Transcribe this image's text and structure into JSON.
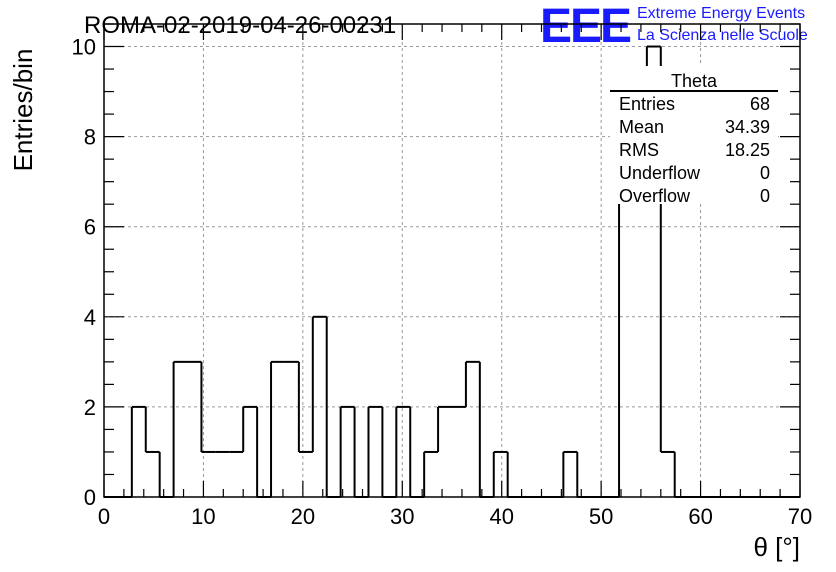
{
  "chart_data": {
    "type": "bar",
    "title": "ROMA-02-2019-04-26-00231",
    "xlabel": "θ [°]",
    "ylabel": "Entries/bin",
    "xlim": [
      0,
      70
    ],
    "ylim": [
      0,
      10.5
    ],
    "x_ticks": [
      0,
      10,
      20,
      30,
      40,
      50,
      60,
      70
    ],
    "y_ticks": [
      0,
      2,
      4,
      6,
      8,
      10
    ],
    "grid": true,
    "bin_width": 1.4,
    "bin_start": 0,
    "values": [
      0,
      0,
      2,
      1,
      0,
      3,
      3,
      1,
      1,
      1,
      2,
      0,
      3,
      3,
      1,
      4,
      0,
      2,
      0,
      2,
      0,
      2,
      0,
      1,
      2,
      2,
      3,
      0,
      1,
      0,
      0,
      0,
      0,
      1,
      0,
      0,
      0,
      7,
      9,
      10,
      1,
      0,
      0,
      0,
      0,
      0,
      0,
      0,
      0,
      0
    ]
  },
  "stats_box": {
    "title": "Theta",
    "rows": [
      {
        "label": "Entries",
        "value": "68"
      },
      {
        "label": "Mean",
        "value": "34.39"
      },
      {
        "label": "RMS",
        "value": "18.25"
      },
      {
        "label": "Underflow",
        "value": "0"
      },
      {
        "label": "Overflow",
        "value": "0"
      }
    ]
  },
  "branding": {
    "logo": "EEE",
    "line1": "Extreme Energy Events",
    "line2": "La Scienza nelle Scuole",
    "color": "#1a1aff"
  }
}
